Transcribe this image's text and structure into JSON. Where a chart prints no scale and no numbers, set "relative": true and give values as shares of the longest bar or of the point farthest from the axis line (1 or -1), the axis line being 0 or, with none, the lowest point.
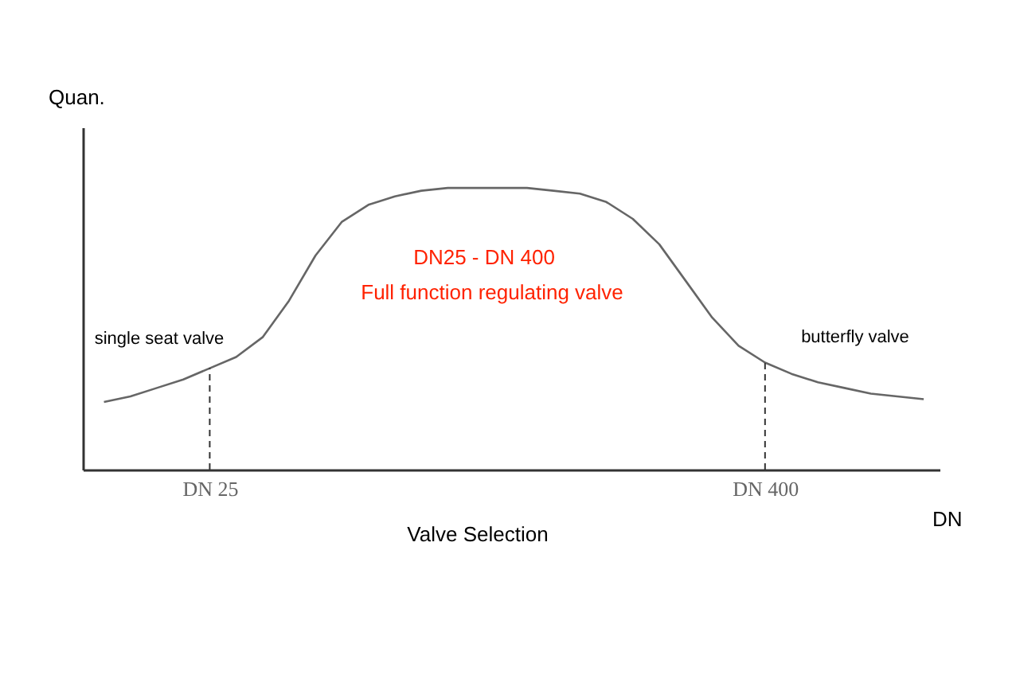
{
  "chart_data": {
    "type": "line",
    "relative": true,
    "xlabel": "DN",
    "ylabel": "Quan.",
    "categories": [
      null,
      null,
      null,
      null,
      "DN 25",
      null,
      null,
      null,
      null,
      null,
      null,
      null,
      null,
      null,
      null,
      null,
      null,
      null,
      null,
      null,
      null,
      null,
      null,
      null,
      null,
      "DN 400",
      null,
      null,
      null,
      null,
      null,
      null
    ],
    "series": [
      {
        "color": "#666666",
        "values": [
          0.24,
          0.26,
          0.29,
          0.32,
          0.36,
          0.4,
          0.47,
          0.6,
          0.76,
          0.88,
          0.94,
          0.97,
          0.99,
          1.0,
          1.0,
          1.0,
          1.0,
          0.99,
          0.98,
          0.95,
          0.89,
          0.8,
          0.67,
          0.54,
          0.44,
          0.38,
          0.34,
          0.31,
          0.29,
          0.27,
          0.26,
          0.25
        ]
      }
    ],
    "ref_lines": [
      {
        "axis": "x",
        "value": "DN 25",
        "line_style": "dashed",
        "color": "#333333"
      },
      {
        "axis": "x",
        "value": "DN 400",
        "line_style": "dashed",
        "color": "#333333"
      }
    ],
    "annotations": [
      "single seat valve",
      "butterfly valve",
      "DN25 - DN 400",
      "Full function regulating valve",
      "Valve Selection"
    ],
    "grid": false,
    "marker": "none",
    "line_style": "solid"
  }
}
